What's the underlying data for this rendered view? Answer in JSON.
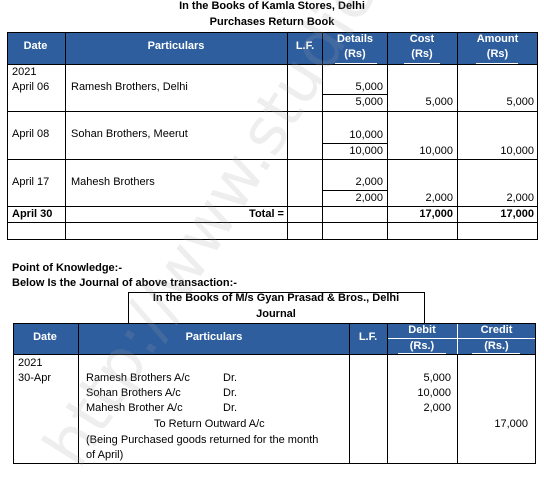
{
  "top": {
    "title1": "In the Books of Kamla Stores, Delhi",
    "title2": "Purchases Return Book",
    "headers": {
      "date": "Date",
      "particulars": "Particulars",
      "lf": "L.F.",
      "details": "Details",
      "details_unit": "(Rs)",
      "cost": "Cost",
      "cost_unit": "(Rs)",
      "amount": "Amount",
      "amount_unit": "(Rs)"
    },
    "year": "2021",
    "rows": [
      {
        "date": "April 06",
        "particulars": "Ramesh Brothers, Delhi",
        "detail1": "5,000",
        "detail2": "5,000",
        "cost": "5,000",
        "amount": "5,000"
      },
      {
        "date": "April 08",
        "particulars": "Sohan Brothers, Meerut",
        "detail1": "10,000",
        "detail2": "10,000",
        "cost": "10,000",
        "amount": "10,000"
      },
      {
        "date": "April 17",
        "particulars": "Mahesh Brothers",
        "detail1": "2,000",
        "detail2": "2,000",
        "cost": "2,000",
        "amount": "2,000"
      }
    ],
    "total": {
      "date": "April 30",
      "label": "Total =",
      "cost": "17,000",
      "amount": "17,000"
    }
  },
  "mid": {
    "point": "Point of Knowledge:-",
    "below": "Below Is the Journal of above transaction:-"
  },
  "journal": {
    "title1": "In the Books of M/s Gyan Prasad & Bros., Delhi",
    "title2": "Journal",
    "headers": {
      "date": "Date",
      "particulars": "Particulars",
      "lf": "L.F.",
      "debit": "Debit",
      "debit_unit": "(Rs.)",
      "credit": "Credit",
      "credit_unit": "(Rs.)"
    },
    "year": "2021",
    "date": "30-Apr",
    "entries": [
      {
        "account": "Ramesh Brothers A/c",
        "dr": "Dr.",
        "debit": "5,000"
      },
      {
        "account": "Sohan Brothers A/c",
        "dr": "Dr.",
        "debit": "10,000"
      },
      {
        "account": "Mahesh Brother A/c",
        "dr": "Dr.",
        "debit": "2,000"
      }
    ],
    "credit_account": "To Return Outward A/c",
    "credit_amount": "17,000",
    "narration1": "(Being Purchased goods returned for the month",
    "narration2": "of April)"
  },
  "watermark": "http://www.studiestoday.com"
}
